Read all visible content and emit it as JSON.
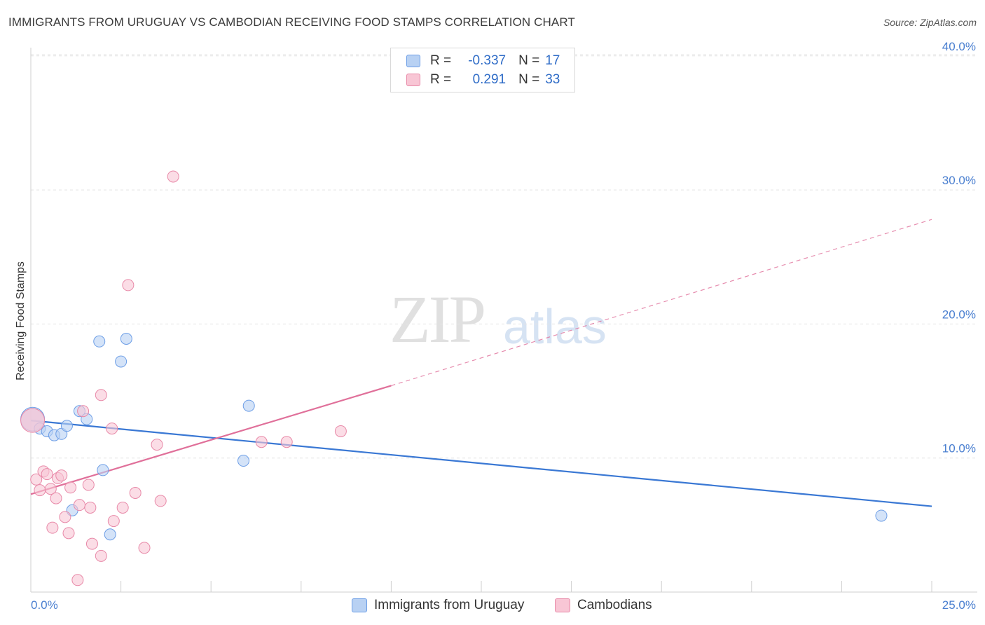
{
  "title": "IMMIGRANTS FROM URUGUAY VS CAMBODIAN RECEIVING FOOD STAMPS CORRELATION CHART",
  "source": "Source: ZipAtlas.com",
  "watermark": {
    "zip": "ZIP",
    "atlas": "atlas"
  },
  "legend": {
    "rows": [
      {
        "r_label": "R =",
        "r_value": "-0.337",
        "n_label": "N =",
        "n_value": "17"
      },
      {
        "r_label": "R =",
        "r_value": "0.291",
        "n_label": "N =",
        "n_value": "33"
      }
    ]
  },
  "colors": {
    "blue_fill": "#b8d1f3",
    "blue_stroke": "#6d9ee6",
    "blue_line": "#3a78d4",
    "pink_fill": "#f8c6d5",
    "pink_stroke": "#e889a8",
    "pink_line": "#e0709a"
  },
  "chart_data": {
    "type": "scatter",
    "title": "IMMIGRANTS FROM URUGUAY VS CAMBODIAN RECEIVING FOOD STAMPS CORRELATION CHART",
    "xlabel": "",
    "ylabel": "Receiving Food Stamps",
    "xlim": [
      0,
      25
    ],
    "ylim": [
      0,
      42
    ],
    "x_tick_labels": [
      {
        "value": 0,
        "label": "0.0%"
      },
      {
        "value": 25,
        "label": "25.0%"
      }
    ],
    "y_tick_labels": [
      {
        "value": 10,
        "label": "10.0%"
      },
      {
        "value": 20,
        "label": "20.0%"
      },
      {
        "value": 30,
        "label": "30.0%"
      },
      {
        "value": 40,
        "label": "40.0%"
      }
    ],
    "series": [
      {
        "name": "Immigrants from Uruguay",
        "color": "blue",
        "points": [
          {
            "x": 0.05,
            "y": 12.9,
            "big": true
          },
          {
            "x": 0.25,
            "y": 12.2
          },
          {
            "x": 0.45,
            "y": 12.0
          },
          {
            "x": 0.65,
            "y": 11.7
          },
          {
            "x": 0.85,
            "y": 11.8
          },
          {
            "x": 1.0,
            "y": 12.4
          },
          {
            "x": 1.15,
            "y": 6.1
          },
          {
            "x": 1.35,
            "y": 13.5
          },
          {
            "x": 1.55,
            "y": 12.9
          },
          {
            "x": 1.9,
            "y": 18.7
          },
          {
            "x": 2.0,
            "y": 9.1
          },
          {
            "x": 2.2,
            "y": 4.3
          },
          {
            "x": 2.5,
            "y": 17.2
          },
          {
            "x": 2.65,
            "y": 18.9
          },
          {
            "x": 5.9,
            "y": 9.8
          },
          {
            "x": 6.05,
            "y": 13.9
          },
          {
            "x": 23.6,
            "y": 5.7
          }
        ],
        "trend": {
          "x0": 0,
          "y0": 12.8,
          "x1": 25,
          "y1": 6.4,
          "dashed_to": null
        }
      },
      {
        "name": "Cambodians",
        "color": "pink",
        "points": [
          {
            "x": 0.05,
            "y": 12.8,
            "big": true
          },
          {
            "x": 0.15,
            "y": 8.4
          },
          {
            "x": 0.25,
            "y": 7.6
          },
          {
            "x": 0.35,
            "y": 9.0
          },
          {
            "x": 0.45,
            "y": 8.8
          },
          {
            "x": 0.55,
            "y": 7.7
          },
          {
            "x": 0.6,
            "y": 4.8
          },
          {
            "x": 0.7,
            "y": 7.0
          },
          {
            "x": 0.75,
            "y": 8.5
          },
          {
            "x": 0.85,
            "y": 8.7
          },
          {
            "x": 0.95,
            "y": 5.6
          },
          {
            "x": 1.05,
            "y": 4.4
          },
          {
            "x": 1.1,
            "y": 7.8
          },
          {
            "x": 1.3,
            "y": 0.9
          },
          {
            "x": 1.35,
            "y": 6.5
          },
          {
            "x": 1.45,
            "y": 13.5
          },
          {
            "x": 1.6,
            "y": 8.0
          },
          {
            "x": 1.65,
            "y": 6.3
          },
          {
            "x": 1.7,
            "y": 3.6
          },
          {
            "x": 1.95,
            "y": 2.7
          },
          {
            "x": 1.95,
            "y": 14.7
          },
          {
            "x": 2.25,
            "y": 12.2
          },
          {
            "x": 2.3,
            "y": 5.3
          },
          {
            "x": 2.55,
            "y": 6.3
          },
          {
            "x": 2.7,
            "y": 22.9
          },
          {
            "x": 2.9,
            "y": 7.4
          },
          {
            "x": 3.15,
            "y": 3.3
          },
          {
            "x": 3.5,
            "y": 11.0
          },
          {
            "x": 3.6,
            "y": 6.8
          },
          {
            "x": 3.95,
            "y": 31.0
          },
          {
            "x": 6.4,
            "y": 11.2
          },
          {
            "x": 7.1,
            "y": 11.2
          },
          {
            "x": 8.6,
            "y": 12.0
          }
        ],
        "trend": {
          "x0": 0,
          "y0": 7.3,
          "x1": 10,
          "y1": 15.4,
          "dashed_to": {
            "x": 25,
            "y": 27.8
          }
        }
      }
    ],
    "bottom_legend": [
      "Immigrants from Uruguay",
      "Cambodians"
    ]
  }
}
